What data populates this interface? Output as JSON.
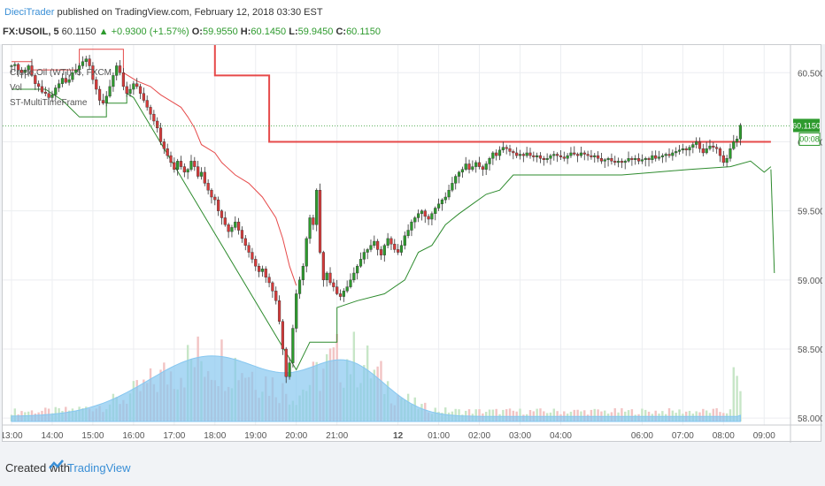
{
  "header": {
    "author": "DieciTrader",
    "published_text": "published on TradingView.com, February 12, 2018 03:30 EST",
    "symbol": "FX:USOIL, 5",
    "last": "60.1150",
    "change": "+0.9300 (+1.57%)",
    "open_label": "O:",
    "open": "59.9550",
    "high_label": "H:",
    "high": "60.1450",
    "low_label": "L:",
    "low": "59.9450",
    "close_label": "C:",
    "close": "60.1150",
    "up_arrow": "▲"
  },
  "legend": {
    "series_title": "Crude Oil (WTI), 5, FXCM",
    "volume_label": "Vol",
    "indicator_label": "ST-MultiTimeFrame"
  },
  "price_tag": {
    "value": "60.1150",
    "countdown": "00:08"
  },
  "footer": {
    "created_with": "Created with",
    "brand": "TradingView"
  },
  "colors": {
    "up": "#2d9a2d",
    "down": "#d63a3a",
    "supertrend_down": "#e64a4a",
    "supertrend_up": "#2e8b2e",
    "htf_line": "#e64a4a",
    "volume_ma": "#87c7f0",
    "vol_up": "#c7e6c7",
    "vol_down": "#f2c4c4",
    "brand": "#3a8fd6"
  },
  "chart_data": {
    "type": "candlestick",
    "symbol": "FX:USOIL, 5",
    "ylim": [
      57.95,
      60.7
    ],
    "y_ticks": [
      "60.5000",
      "60.0000",
      "59.5000",
      "59.0000",
      "58.5000",
      "58.0000"
    ],
    "y_tick_values": [
      60.5,
      60.0,
      59.5,
      59.0,
      58.5,
      58.0
    ],
    "x_ticks": [
      "13:00",
      "14:00",
      "15:00",
      "16:00",
      "17:00",
      "18:00",
      "19:00",
      "20:00",
      "21:00",
      "12",
      "01:00",
      "02:00",
      "03:00",
      "04:00",
      "06:00",
      "07:00",
      "08:00",
      "09:00"
    ],
    "x_tick_bars": [
      0,
      12,
      24,
      36,
      48,
      60,
      72,
      84,
      96,
      114,
      126,
      138,
      150,
      162,
      186,
      198,
      210,
      222
    ],
    "close_series": [
      60.55,
      60.56,
      60.52,
      60.5,
      60.52,
      60.55,
      60.48,
      60.42,
      60.4,
      60.36,
      60.35,
      60.32,
      60.34,
      60.39,
      60.42,
      60.46,
      60.43,
      60.45,
      60.5,
      60.52,
      60.55,
      60.58,
      60.6,
      60.55,
      60.45,
      60.38,
      60.3,
      60.28,
      60.33,
      60.4,
      60.48,
      60.55,
      60.5,
      60.4,
      60.35,
      60.38,
      60.42,
      60.4,
      60.35,
      60.3,
      60.25,
      60.2,
      60.15,
      60.1,
      60.0,
      59.95,
      59.9,
      59.85,
      59.8,
      59.86,
      59.82,
      59.78,
      59.8,
      59.86,
      59.82,
      59.75,
      59.78,
      59.7,
      59.65,
      59.6,
      59.58,
      59.5,
      59.45,
      59.4,
      59.35,
      59.38,
      59.42,
      59.36,
      59.3,
      59.25,
      59.2,
      59.15,
      59.1,
      59.06,
      59.08,
      59.02,
      58.98,
      58.92,
      58.85,
      58.7,
      58.5,
      58.3,
      58.4,
      58.65,
      58.9,
      59.0,
      59.1,
      59.3,
      59.45,
      59.4,
      59.65,
      59.2,
      59.0,
      59.05,
      58.98,
      58.95,
      58.9,
      58.88,
      58.92,
      58.95,
      59.0,
      59.05,
      59.1,
      59.15,
      59.2,
      59.22,
      59.25,
      59.28,
      59.22,
      59.18,
      59.25,
      59.3,
      59.26,
      59.22,
      59.2,
      59.25,
      59.32,
      59.36,
      59.42,
      59.45,
      59.48,
      59.5,
      59.46,
      59.44,
      59.48,
      59.52,
      59.55,
      59.58,
      59.6,
      59.65,
      59.7,
      59.75,
      59.78,
      59.8,
      59.84,
      59.8,
      59.82,
      59.85,
      59.82,
      59.8,
      59.84,
      59.88,
      59.92,
      59.9,
      59.94,
      59.96,
      59.95,
      59.93,
      59.92,
      59.9,
      59.91,
      59.9,
      59.92,
      59.9,
      59.89,
      59.9,
      59.88,
      59.87,
      59.88,
      59.9,
      59.91,
      59.9,
      59.89,
      59.88,
      59.9,
      59.92,
      59.91,
      59.9,
      59.92,
      59.91,
      59.9,
      59.89,
      59.9,
      59.88,
      59.86,
      59.87,
      59.88,
      59.86,
      59.85,
      59.86,
      59.85,
      59.86,
      59.88,
      59.87,
      59.88,
      59.86,
      59.87,
      59.88,
      59.87,
      59.9,
      59.88,
      59.89,
      59.9,
      59.91,
      59.9,
      59.92,
      59.93,
      59.94,
      59.95,
      59.94,
      59.96,
      59.98,
      60.0,
      59.95,
      59.92,
      59.95,
      59.97,
      59.96,
      59.95,
      59.9,
      59.85,
      59.88,
      59.95,
      60.0,
      60.02,
      60.12
    ],
    "supertrend_upper": [
      [
        0,
        60.58
      ],
      [
        6,
        60.58
      ],
      [
        6,
        60.52
      ],
      [
        20,
        60.52
      ],
      [
        20,
        60.67
      ],
      [
        33,
        60.67
      ],
      [
        33,
        60.5
      ],
      [
        37,
        60.44
      ],
      [
        41,
        60.4
      ],
      [
        44,
        60.34
      ],
      [
        48,
        60.28
      ],
      [
        50,
        60.25
      ],
      [
        52,
        60.18
      ],
      [
        54,
        60.1
      ],
      [
        56,
        59.98
      ],
      [
        60,
        59.92
      ],
      [
        62,
        59.85
      ],
      [
        66,
        59.76
      ],
      [
        70,
        59.7
      ],
      [
        74,
        59.6
      ],
      [
        78,
        59.45
      ],
      [
        80,
        59.3
      ],
      [
        82,
        59.1
      ],
      [
        84,
        58.96
      ]
    ],
    "supertrend_lower": [
      [
        0,
        60.38
      ],
      [
        10,
        60.38
      ],
      [
        15,
        60.3
      ],
      [
        20,
        60.18
      ],
      [
        28,
        60.18
      ],
      [
        28,
        60.28
      ],
      [
        34,
        60.28
      ],
      [
        34,
        60.35
      ],
      [
        36,
        60.32
      ],
      [
        84,
        58.35
      ],
      [
        88,
        58.55
      ],
      [
        96,
        58.55
      ],
      [
        96,
        58.8
      ],
      [
        102,
        58.85
      ],
      [
        110,
        58.9
      ],
      [
        116,
        59.0
      ],
      [
        120,
        59.2
      ],
      [
        124,
        59.25
      ],
      [
        128,
        59.4
      ],
      [
        132,
        59.48
      ],
      [
        136,
        59.55
      ],
      [
        140,
        59.62
      ],
      [
        144,
        59.65
      ],
      [
        148,
        59.76
      ],
      [
        180,
        59.76
      ],
      [
        190,
        59.78
      ],
      [
        200,
        59.8
      ],
      [
        212,
        59.82
      ],
      [
        218,
        59.86
      ],
      [
        222,
        59.78
      ],
      [
        224,
        59.82
      ]
    ],
    "supertrend_tail": [
      [
        224,
        59.8
      ],
      [
        225,
        59.05
      ]
    ],
    "htf_line": [
      [
        60,
        60.75
      ],
      [
        60,
        60.48
      ],
      [
        76,
        60.48
      ],
      [
        76,
        60.0
      ],
      [
        224,
        60.0
      ]
    ],
    "volume_scale_max": 100,
    "volume_ma_peak_bars": [
      59,
      99
    ],
    "last_value": 60.115
  }
}
